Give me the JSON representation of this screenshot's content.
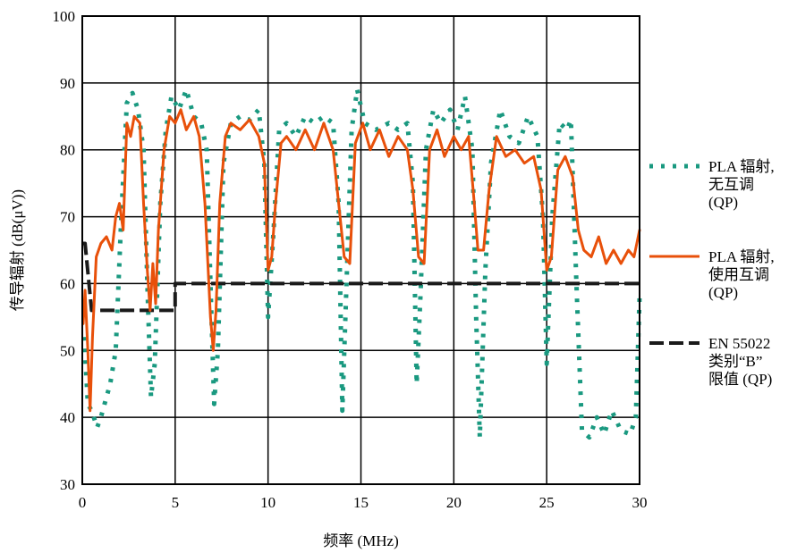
{
  "chart_data": {
    "type": "line",
    "xlabel": "频率 (MHz)",
    "ylabel": "传导辐射 (dB(μV))",
    "xlim": [
      0,
      30
    ],
    "ylim": [
      30,
      100
    ],
    "x_ticks": [
      "0",
      "5",
      "10",
      "15",
      "20",
      "25",
      "30"
    ],
    "y_ticks": [
      "30",
      "40",
      "50",
      "60",
      "70",
      "80",
      "90",
      "100"
    ],
    "grid": true,
    "legend_position": "right",
    "series": [
      {
        "name": "PLA 辐射, 无互调 (QP)",
        "legend_lines": [
          "PLA 辐射,",
          "无互调",
          "(QP)"
        ],
        "color": "#1a9980",
        "style": "dotted",
        "points": [
          [
            0.1,
            52
          ],
          [
            0.3,
            42
          ],
          [
            0.5,
            41
          ],
          [
            0.8,
            38.5
          ],
          [
            1.0,
            40
          ],
          [
            1.2,
            42
          ],
          [
            1.5,
            45
          ],
          [
            1.8,
            50
          ],
          [
            2.1,
            70
          ],
          [
            2.4,
            87
          ],
          [
            2.7,
            88.5
          ],
          [
            3.0,
            86
          ],
          [
            3.3,
            80
          ],
          [
            3.5,
            60
          ],
          [
            3.7,
            43
          ],
          [
            3.9,
            48
          ],
          [
            4.2,
            72
          ],
          [
            4.5,
            83
          ],
          [
            4.8,
            88
          ],
          [
            5.2,
            86
          ],
          [
            5.6,
            89
          ],
          [
            6.0,
            85
          ],
          [
            6.4,
            84
          ],
          [
            6.7,
            80
          ],
          [
            6.9,
            60
          ],
          [
            7.1,
            42
          ],
          [
            7.3,
            50
          ],
          [
            7.6,
            78
          ],
          [
            8.0,
            84
          ],
          [
            8.5,
            85
          ],
          [
            9.0,
            84.5
          ],
          [
            9.5,
            86
          ],
          [
            9.8,
            78
          ],
          [
            10.0,
            55
          ],
          [
            10.3,
            68
          ],
          [
            10.6,
            83
          ],
          [
            11.0,
            84
          ],
          [
            11.5,
            82
          ],
          [
            12.0,
            85
          ],
          [
            12.5,
            84
          ],
          [
            13.0,
            85
          ],
          [
            13.5,
            84
          ],
          [
            13.8,
            72
          ],
          [
            14.0,
            41
          ],
          [
            14.2,
            58
          ],
          [
            14.5,
            83
          ],
          [
            14.8,
            89
          ],
          [
            15.2,
            84
          ],
          [
            15.8,
            83
          ],
          [
            16.5,
            84
          ],
          [
            17.0,
            83
          ],
          [
            17.5,
            84
          ],
          [
            17.8,
            75
          ],
          [
            18.0,
            45
          ],
          [
            18.2,
            58
          ],
          [
            18.5,
            80
          ],
          [
            18.9,
            86
          ],
          [
            19.3,
            84
          ],
          [
            19.8,
            86
          ],
          [
            20.2,
            83
          ],
          [
            20.6,
            88
          ],
          [
            21.0,
            80
          ],
          [
            21.2,
            55
          ],
          [
            21.4,
            37
          ],
          [
            21.7,
            62
          ],
          [
            22.0,
            78
          ],
          [
            22.5,
            86
          ],
          [
            23.0,
            82
          ],
          [
            23.5,
            81
          ],
          [
            24.0,
            85
          ],
          [
            24.5,
            82
          ],
          [
            24.8,
            70
          ],
          [
            25.0,
            48
          ],
          [
            25.3,
            70
          ],
          [
            25.7,
            84
          ],
          [
            26.1,
            83
          ],
          [
            26.3,
            84.5
          ],
          [
            26.6,
            60
          ],
          [
            26.9,
            38
          ],
          [
            27.3,
            37
          ],
          [
            27.7,
            40
          ],
          [
            28.1,
            37.5
          ],
          [
            28.5,
            41
          ],
          [
            29.0,
            38
          ],
          [
            29.5,
            37.5
          ],
          [
            29.8,
            40
          ],
          [
            30.0,
            58
          ]
        ]
      },
      {
        "name": "PLA 辐射, 使用互调 (QP)",
        "legend_lines": [
          "PLA 辐射,",
          "使用互调",
          "(QP)"
        ],
        "color": "#e8500a",
        "style": "solid",
        "points": [
          [
            0.05,
            54
          ],
          [
            0.15,
            59
          ],
          [
            0.3,
            50
          ],
          [
            0.42,
            41
          ],
          [
            0.55,
            52
          ],
          [
            0.75,
            64
          ],
          [
            1.0,
            66
          ],
          [
            1.3,
            67
          ],
          [
            1.6,
            65
          ],
          [
            1.8,
            70
          ],
          [
            2.0,
            72
          ],
          [
            2.2,
            68
          ],
          [
            2.4,
            84
          ],
          [
            2.6,
            82
          ],
          [
            2.8,
            85
          ],
          [
            3.1,
            84
          ],
          [
            3.3,
            72
          ],
          [
            3.5,
            62
          ],
          [
            3.65,
            56
          ],
          [
            3.8,
            63
          ],
          [
            3.95,
            57
          ],
          [
            4.1,
            68
          ],
          [
            4.4,
            80
          ],
          [
            4.7,
            85
          ],
          [
            5.0,
            84
          ],
          [
            5.3,
            86
          ],
          [
            5.6,
            83
          ],
          [
            6.0,
            85
          ],
          [
            6.3,
            82
          ],
          [
            6.6,
            72
          ],
          [
            6.9,
            55
          ],
          [
            7.05,
            50
          ],
          [
            7.2,
            56
          ],
          [
            7.4,
            72
          ],
          [
            7.7,
            82
          ],
          [
            8.0,
            84
          ],
          [
            8.5,
            83
          ],
          [
            9.0,
            84.5
          ],
          [
            9.5,
            82
          ],
          [
            9.8,
            78
          ],
          [
            10.0,
            62
          ],
          [
            10.2,
            64
          ],
          [
            10.4,
            72
          ],
          [
            10.7,
            81
          ],
          [
            11.0,
            82
          ],
          [
            11.5,
            80
          ],
          [
            12.0,
            83
          ],
          [
            12.5,
            80
          ],
          [
            13.0,
            84
          ],
          [
            13.5,
            80
          ],
          [
            13.8,
            72
          ],
          [
            14.1,
            64
          ],
          [
            14.4,
            63
          ],
          [
            14.7,
            81
          ],
          [
            15.1,
            84
          ],
          [
            15.5,
            80
          ],
          [
            16.0,
            83
          ],
          [
            16.5,
            79
          ],
          [
            17.0,
            82
          ],
          [
            17.5,
            80
          ],
          [
            17.8,
            74
          ],
          [
            18.1,
            64
          ],
          [
            18.4,
            63
          ],
          [
            18.7,
            80
          ],
          [
            19.1,
            83
          ],
          [
            19.5,
            79
          ],
          [
            20.0,
            82
          ],
          [
            20.4,
            80
          ],
          [
            20.8,
            82
          ],
          [
            21.1,
            72
          ],
          [
            21.3,
            65
          ],
          [
            21.6,
            65
          ],
          [
            21.9,
            74
          ],
          [
            22.3,
            82
          ],
          [
            22.8,
            79
          ],
          [
            23.3,
            80
          ],
          [
            23.8,
            78
          ],
          [
            24.3,
            79
          ],
          [
            24.7,
            74
          ],
          [
            25.0,
            62
          ],
          [
            25.25,
            64
          ],
          [
            25.6,
            77
          ],
          [
            26.0,
            79
          ],
          [
            26.4,
            76
          ],
          [
            26.7,
            68
          ],
          [
            27.0,
            65
          ],
          [
            27.4,
            64
          ],
          [
            27.8,
            67
          ],
          [
            28.2,
            63
          ],
          [
            28.6,
            65
          ],
          [
            29.0,
            63
          ],
          [
            29.4,
            65
          ],
          [
            29.7,
            64
          ],
          [
            30.0,
            68
          ]
        ]
      },
      {
        "name": "EN 55022 类别“B” 限值 (QP)",
        "legend_lines": [
          "EN 55022",
          "类别“B”",
          "限值 (QP)"
        ],
        "color": "#1a1a1a",
        "style": "dashed",
        "points": [
          [
            0.0,
            66
          ],
          [
            0.15,
            66
          ],
          [
            0.5,
            56
          ],
          [
            5.0,
            56
          ],
          [
            5.0,
            60
          ],
          [
            30.0,
            60
          ]
        ]
      }
    ]
  }
}
